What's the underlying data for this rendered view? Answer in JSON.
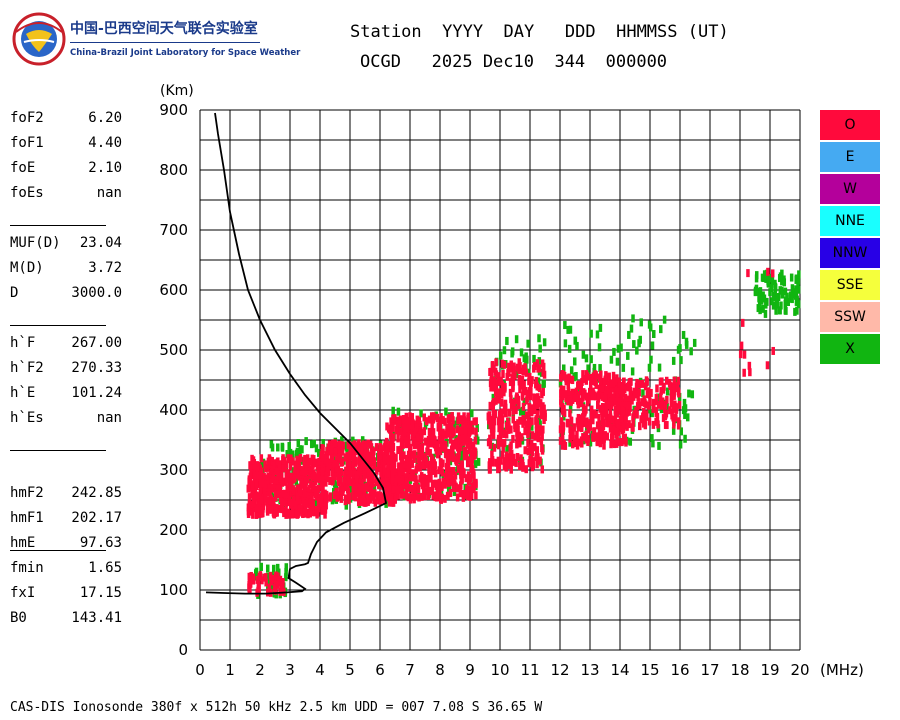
{
  "logo": {
    "chinese_name": "中国-巴西空间天气联合实验室",
    "english_name": "China-Brazil Joint Laboratory for Space Weather"
  },
  "header": {
    "line1": "Station  YYYY  DAY   DDD  HHMMSS (UT)",
    "line2": "OCGD   2025 Dec10  344  000000"
  },
  "parameters": {
    "group1": [
      {
        "name": "foF2",
        "value": "6.20"
      },
      {
        "name": "foF1",
        "value": "4.40"
      },
      {
        "name": "foE",
        "value": "2.10"
      },
      {
        "name": "foEs",
        "value": "nan"
      }
    ],
    "group2": [
      {
        "name": "MUF(D)",
        "value": "23.04"
      },
      {
        "name": "M(D)",
        "value": "3.72"
      },
      {
        "name": "D",
        "value": "3000.0"
      }
    ],
    "group3": [
      {
        "name": "h`F",
        "value": "267.00"
      },
      {
        "name": "h`F2",
        "value": "270.33"
      },
      {
        "name": "h`E",
        "value": "101.24"
      },
      {
        "name": "h`Es",
        "value": "nan"
      }
    ],
    "group4": [
      {
        "name": "hmF2",
        "value": "242.85"
      },
      {
        "name": "hmF1",
        "value": "202.17"
      },
      {
        "name": "hmE",
        "value": "97.63"
      }
    ],
    "group5": [
      {
        "name": "fmin",
        "value": "1.65"
      },
      {
        "name": "fxI",
        "value": "17.15"
      },
      {
        "name": "B0",
        "value": "143.41"
      }
    ]
  },
  "legend": [
    {
      "label": "O",
      "color": "#ff0a3c"
    },
    {
      "label": "E",
      "color": "#45aaf2"
    },
    {
      "label": "W",
      "color": "#b4009b"
    },
    {
      "label": "NNE",
      "color": "#19ffff"
    },
    {
      "label": "NNW",
      "color": "#2800e6"
    },
    {
      "label": "SSE",
      "color": "#f5ff3c"
    },
    {
      "label": "SSW",
      "color": "#ffb9a9"
    },
    {
      "label": "X",
      "color": "#11b511"
    }
  ],
  "footer": "CAS-DIS Ionosonde 380f x 512h 50 kHz 2.5 km UDD = 007 7.08 S 36.65 W",
  "chart_data": {
    "type": "scatter",
    "xlabel": "(MHz)",
    "ylabel": "(Km)",
    "xlim": [
      0,
      20
    ],
    "ylim": [
      0,
      900
    ],
    "x_ticks": [
      0,
      1,
      2,
      3,
      4,
      5,
      6,
      7,
      8,
      9,
      10,
      11,
      12,
      13,
      14,
      15,
      16,
      17,
      18,
      19,
      20
    ],
    "y_ticks": [
      0,
      100,
      200,
      300,
      400,
      500,
      600,
      700,
      800,
      900
    ],
    "grid": true,
    "legend_position": "right",
    "profile": {
      "x": [
        0.5,
        0.6,
        0.8,
        1.0,
        1.3,
        1.6,
        2.0,
        2.5,
        3.0,
        3.5,
        4.0,
        4.5,
        5.0,
        5.4,
        5.8,
        6.1,
        6.2,
        6.0,
        5.5,
        4.8,
        4.2,
        3.9,
        3.7,
        3.6,
        3.5,
        3.2,
        3.0,
        2.95,
        3.2,
        3.5,
        3.4,
        2.9,
        2.2,
        1.5,
        0.8,
        0.2
      ],
      "y": [
        895,
        860,
        800,
        730,
        660,
        600,
        550,
        500,
        460,
        425,
        395,
        370,
        345,
        320,
        295,
        270,
        245,
        240,
        228,
        212,
        196,
        180,
        160,
        145,
        143,
        140,
        135,
        120,
        112,
        102,
        98,
        96,
        94,
        94,
        95,
        96
      ]
    },
    "series": [
      {
        "name": "O",
        "color": "#ff0a3c",
        "clusters": [
          {
            "x": [
              1.6,
              4.2
            ],
            "y": [
              225,
              320
            ],
            "n": 520
          },
          {
            "x": [
              4.0,
              6.5
            ],
            "y": [
              245,
              345
            ],
            "n": 420
          },
          {
            "x": [
              6.2,
              9.2
            ],
            "y": [
              250,
              390
            ],
            "n": 600
          },
          {
            "x": [
              9.6,
              11.5
            ],
            "y": [
              300,
              480
            ],
            "n": 320
          },
          {
            "x": [
              12.0,
              14.2
            ],
            "y": [
              340,
              460
            ],
            "n": 300
          },
          {
            "x": [
              13.4,
              16.0
            ],
            "y": [
              370,
              450
            ],
            "n": 200
          },
          {
            "x": [
              1.6,
              2.8
            ],
            "y": [
              95,
              125
            ],
            "n": 50
          },
          {
            "x": [
              18.0,
              19.3
            ],
            "y": [
              450,
              640
            ],
            "n": 12
          }
        ]
      },
      {
        "name": "X",
        "color": "#11b511",
        "clusters": [
          {
            "x": [
              2.0,
              6.3
            ],
            "y": [
              240,
              350
            ],
            "n": 140
          },
          {
            "x": [
              6.3,
              9.3
            ],
            "y": [
              255,
              400
            ],
            "n": 110
          },
          {
            "x": [
              9.6,
              11.5
            ],
            "y": [
              310,
              520
            ],
            "n": 70
          },
          {
            "x": [
              12.0,
              16.5
            ],
            "y": [
              340,
              560
            ],
            "n": 130
          },
          {
            "x": [
              1.8,
              2.9
            ],
            "y": [
              90,
              140
            ],
            "n": 35
          },
          {
            "x": [
              18.5,
              20.0
            ],
            "y": [
              560,
              630
            ],
            "n": 90
          }
        ]
      }
    ]
  }
}
